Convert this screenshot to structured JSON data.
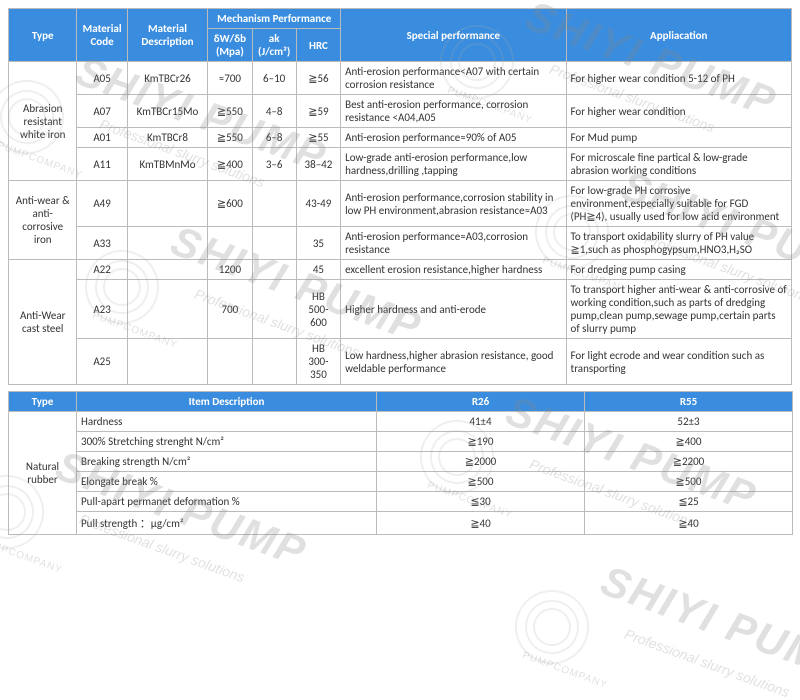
{
  "table1": {
    "headers": {
      "type": "Type",
      "matcode": "Material Code",
      "matdesc": "Material Description",
      "mech": "Mechanism Performance",
      "mech_sub": [
        "δW/δb\n(Mpa)",
        "ak\n(J/cm²)",
        "HRC"
      ],
      "special": "Special performance",
      "app": "Appliacation"
    },
    "groups": [
      {
        "type": "Abrasion resistant white iron",
        "rows": [
          {
            "code": "A05",
            "desc": "KmTBCr26",
            "m1": "≈700",
            "m2": "6–10",
            "m3": "≧56",
            "sp": "Anti-erosion performance<A07 with certain corrosion resistance",
            "app": "For higher wear condition 5-12 of PH"
          },
          {
            "code": "A07",
            "desc": "KmTBCr15Mo",
            "m1": "≧550",
            "m2": "4–8",
            "m3": "≧59",
            "sp": "Best anti-erosion performance, corrosion resistance <A04,A05",
            "app": "For higher wear condition"
          },
          {
            "code": "A01",
            "desc": "KmTBCr8",
            "m1": "≧550",
            "m2": "6–8",
            "m3": "≧55",
            "sp": "Anti-erosion performance≈90% of A05",
            "app": "For Mud pump"
          },
          {
            "code": "A11",
            "desc": "KmTBMnMo",
            "m1": "≧400",
            "m2": "3–6",
            "m3": "38–42",
            "sp": "Low-grade anti-erosion performance,low hardness,drilling ,tapping",
            "app": "For microscale fine partical & low-grade abrasion working conditions"
          }
        ]
      },
      {
        "type": "Anti-wear & anti-corrosive iron",
        "rows": [
          {
            "code": "A49",
            "desc": "",
            "m1": "≧600",
            "m2": "",
            "m3": "43-49",
            "sp": "Anti-erosion performance,corrosion stability\nin low PH environment,abrasion resistance≈A03",
            "app": "For low-grade PH corrosive environment,especially suitable for FGD (PH≧4), usually used for low acid environment"
          },
          {
            "code": "A33",
            "desc": "",
            "m1": "",
            "m2": "",
            "m3": "35",
            "sp": "Anti-erosion performance≈A03,corrosion resistance",
            "app": "To transport oxidability slurry of PH value ≧1,such as phosphogypsum,HNO3,H₂SO"
          }
        ]
      },
      {
        "type": "Anti-Wear cast steel",
        "rows": [
          {
            "code": "A22",
            "desc": "",
            "m1": "1200",
            "m2": "",
            "m3": "45",
            "sp": "excellent erosion resistance,higher hardness",
            "app": "For dredging pump casing"
          },
          {
            "code": "A23",
            "desc": "",
            "m1": "700",
            "m2": "",
            "m3": "HB 500-600",
            "sp": "Higher hardness and anti-erode",
            "app": "To transport higher anti-wear & anti-corrosive\nof working condition,such as parts of dredging pump,clean pump,sewage pump,certain parts of slurry pump"
          },
          {
            "code": "A25",
            "desc": "",
            "m1": "",
            "m2": "",
            "m3": "HB 300-350",
            "sp": "Low hardness,higher abrasion resistance, good weldable performance",
            "app": "For light ecrode and wear condition such as transporting"
          }
        ]
      }
    ],
    "colwidths": [
      "68px",
      "50px",
      "80px",
      "44px",
      "44px",
      "44px",
      "224px",
      "224px"
    ]
  },
  "table2": {
    "headers": [
      "Type",
      "Item Description",
      "R26",
      "R55"
    ],
    "type": "Natural rubber",
    "rows": [
      {
        "item": "Hardness",
        "r26": "41±4",
        "r55": "52±3"
      },
      {
        "item": "300% Stretching strenght N/cm²",
        "r26": "≧190",
        "r55": "≧400"
      },
      {
        "item": "Breaking strength N/cm²",
        "r26": "≧2000",
        "r55": "≧2200"
      },
      {
        "item": "Elongate break %",
        "r26": "≧500",
        "r55": "≧500"
      },
      {
        "item": "Pull-apart permanet deformation %",
        "r26": "≦30",
        "r55": "≦25"
      },
      {
        "item": "Pull strength ：μg/cm²",
        "r26": "≧40",
        "r55": "≧40"
      }
    ],
    "colwidths": [
      "68px",
      "300px",
      "208px",
      "208px"
    ]
  },
  "watermark": {
    "main": "SHIYI  PUMP",
    "sub": "Professional slurry solutions",
    "side": "PUMPCOMPANY"
  },
  "colors": {
    "header_bg": "#3a8dde",
    "border": "#bbbbbb"
  }
}
